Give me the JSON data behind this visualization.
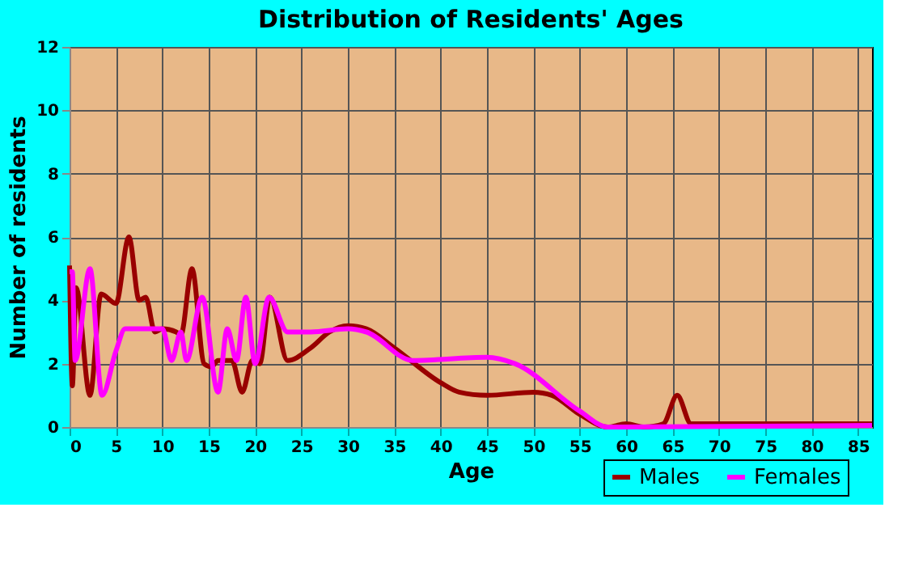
{
  "chart_data": {
    "type": "line",
    "title": "Distribution of Residents' Ages",
    "xlabel": "Age",
    "ylabel": "Number of residents",
    "xlim": [
      0,
      86.5
    ],
    "xticks": [
      0,
      5,
      10,
      15,
      20,
      25,
      30,
      35,
      40,
      45,
      50,
      55,
      60,
      65,
      70,
      75,
      80,
      85
    ],
    "ylim": [
      0,
      12
    ],
    "yticks": [
      0,
      2,
      4,
      6,
      8,
      10,
      12
    ],
    "grid": true,
    "legend": "bottom right",
    "line_style": "solid",
    "marker": "none",
    "series": [
      {
        "name": "Males",
        "color": "#990000",
        "x": [
          0,
          0.3,
          0.7,
          2.2,
          3.4,
          5,
          6.4,
          7.5,
          8.2,
          9.2,
          10,
          11.5,
          12,
          13.2,
          14.5,
          15.3,
          16,
          17.5,
          18.6,
          19.7,
          20.5,
          21.6,
          23.5,
          26,
          28,
          30,
          32,
          35,
          40,
          42,
          45,
          50,
          52,
          55,
          58,
          60,
          62,
          64,
          65.5,
          67,
          70,
          86.5
        ],
        "values": [
          5.1,
          1.3,
          4.4,
          1.0,
          4.2,
          3.9,
          6.0,
          4.0,
          4.1,
          3.0,
          3.1,
          3.0,
          2.9,
          5.0,
          2.0,
          1.9,
          2.1,
          2.1,
          1.1,
          2.1,
          2.0,
          4.1,
          2.1,
          2.5,
          3.0,
          3.2,
          3.1,
          2.5,
          1.4,
          1.1,
          1.0,
          1.1,
          1.0,
          0.4,
          0,
          0.1,
          0,
          0.1,
          1.0,
          0.1,
          0.1,
          0.1
        ]
      },
      {
        "name": "Females",
        "color": "#ff00ff",
        "x": [
          0,
          0.3,
          0.6,
          2.2,
          3.5,
          5,
          6,
          8,
          10,
          11,
          12,
          12.6,
          14.3,
          16,
          17,
          18,
          19,
          20,
          21.5,
          23.5,
          26,
          30,
          32,
          37,
          45,
          48,
          55,
          58,
          86.5
        ],
        "values": [
          4.9,
          4.9,
          2.1,
          5.0,
          1.0,
          2.4,
          3.1,
          3.1,
          3.1,
          2.1,
          3.0,
          2.1,
          4.1,
          1.1,
          3.1,
          2.1,
          4.1,
          2.0,
          4.1,
          3.0,
          3.0,
          3.1,
          3.0,
          2.1,
          2.2,
          2.0,
          0.5,
          0,
          0.05
        ]
      }
    ]
  }
}
